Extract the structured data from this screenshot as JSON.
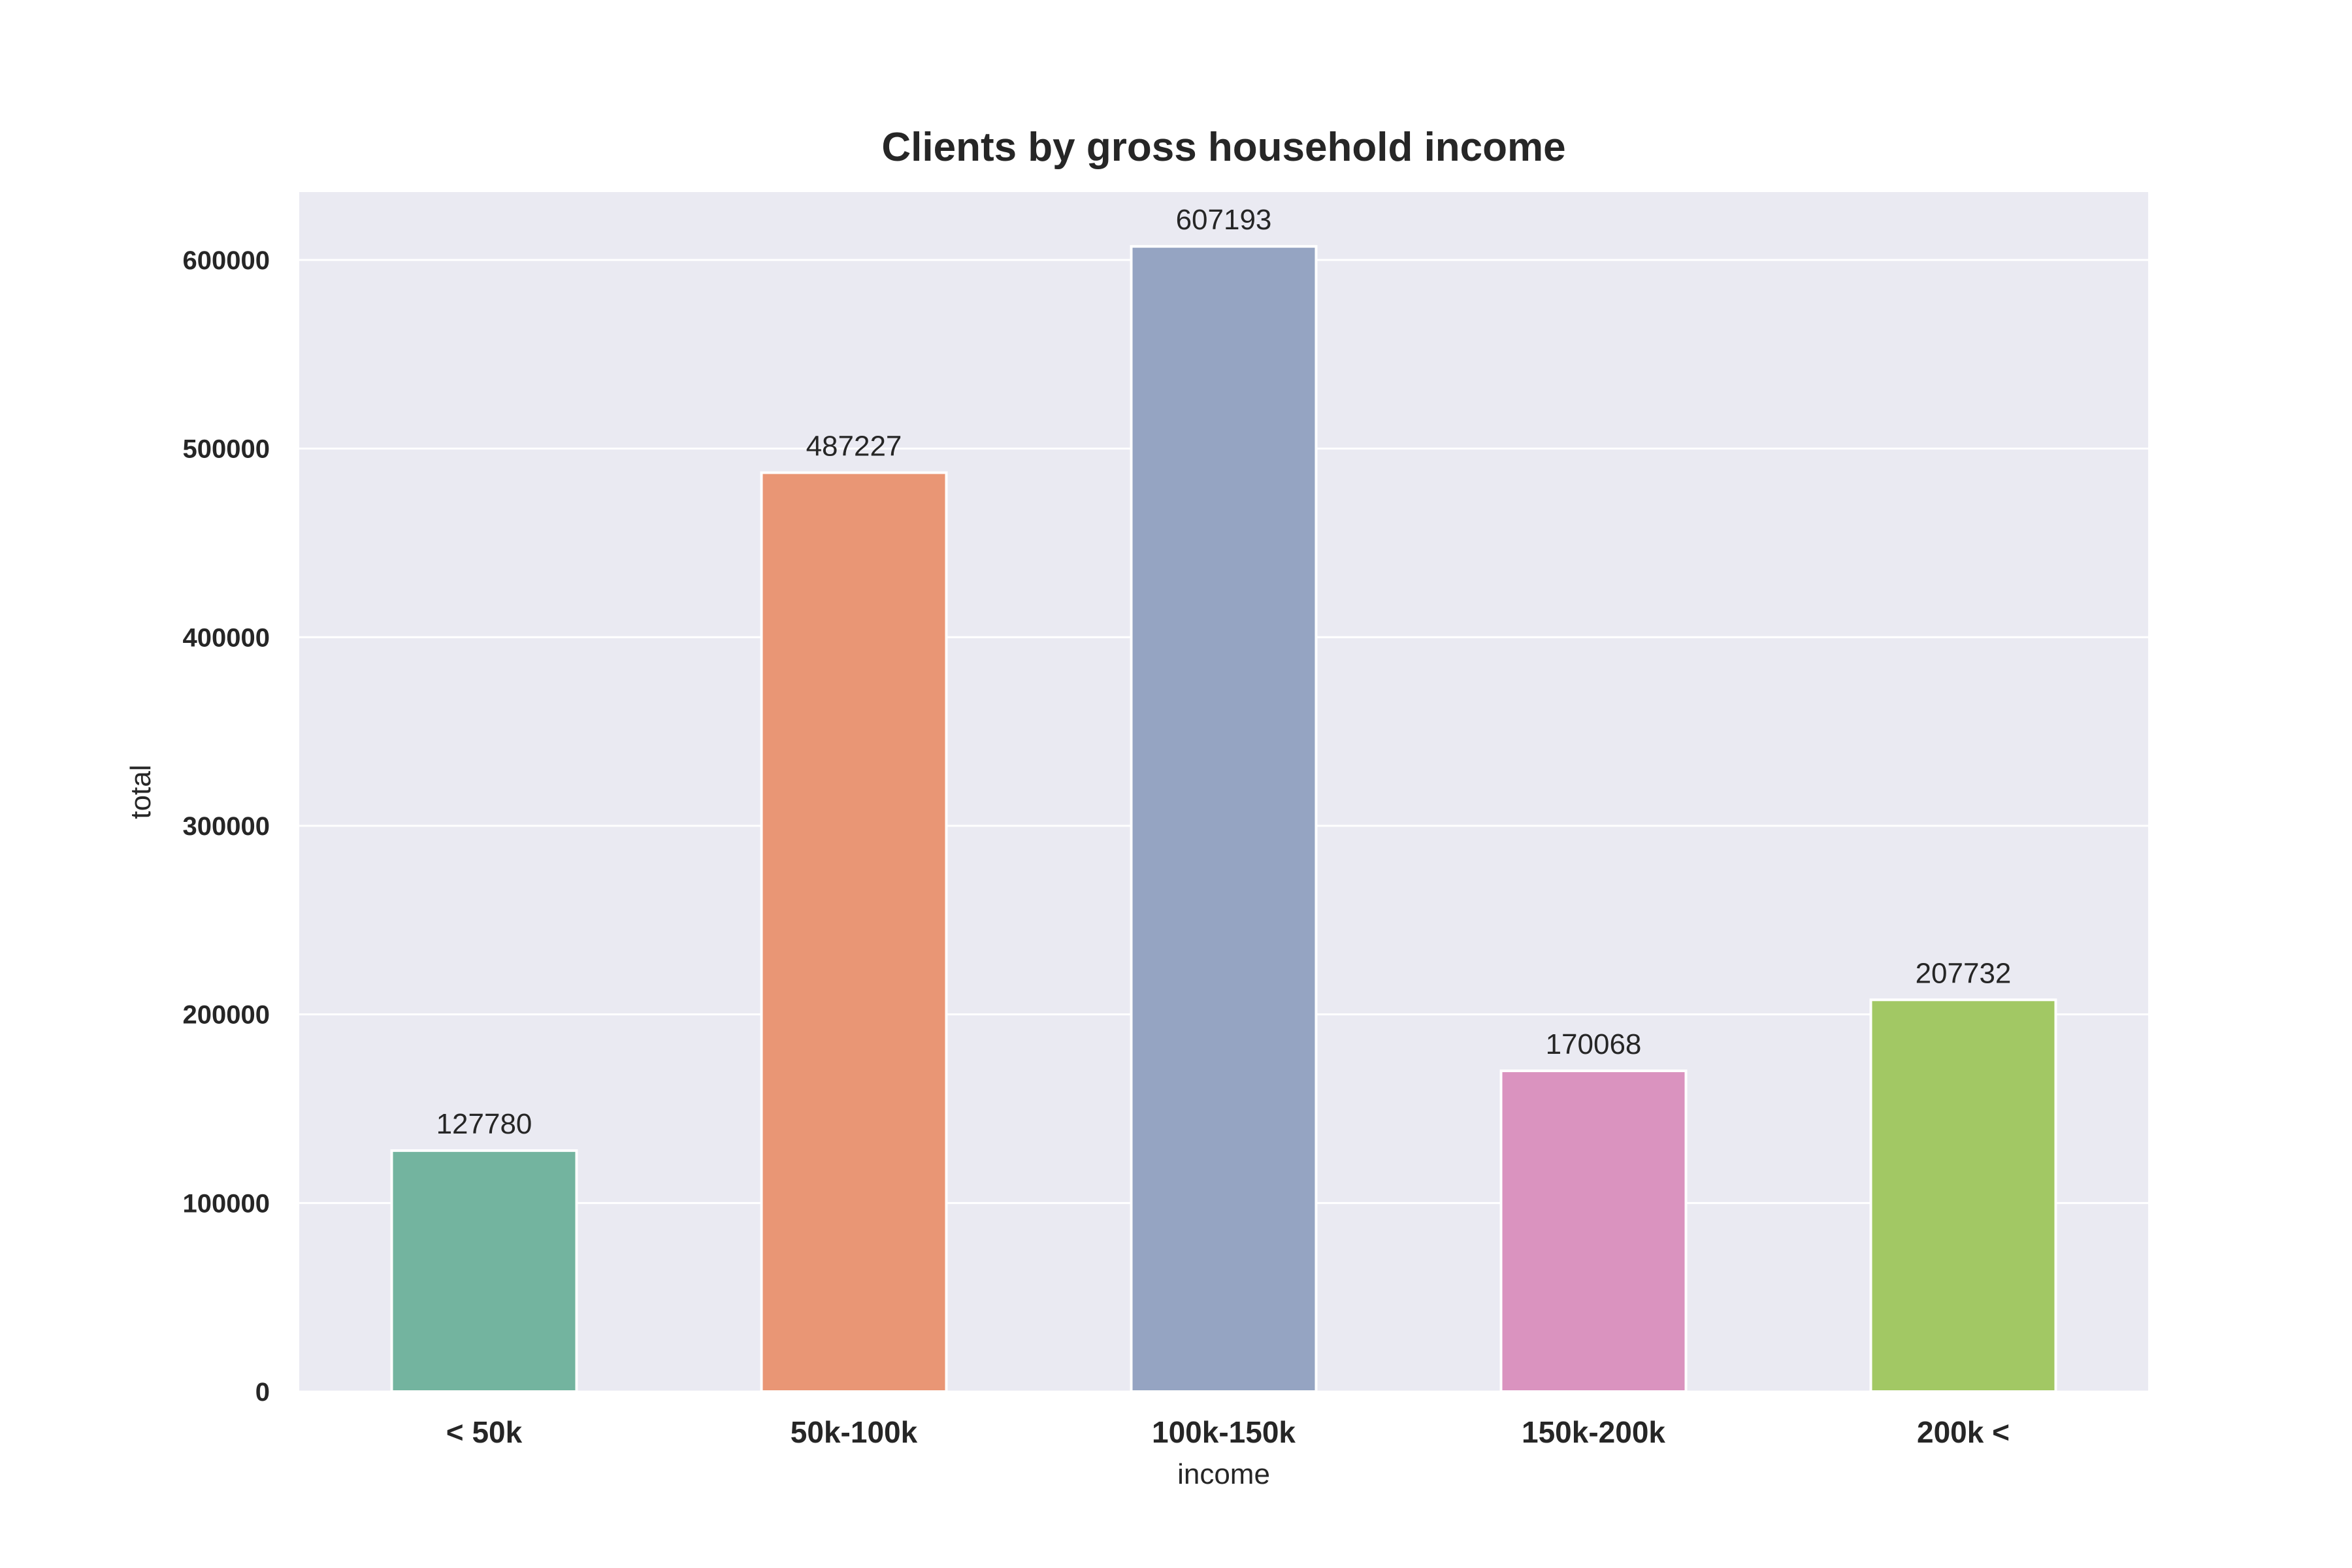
{
  "chart_data": {
    "type": "bar",
    "title": "Clients by gross household income",
    "xlabel": "income",
    "ylabel": "total",
    "categories": [
      "< 50k",
      "50k-100k",
      "100k-150k",
      "150k-200k",
      "200k <"
    ],
    "values": [
      127780,
      487227,
      607193,
      170068,
      207732
    ],
    "value_labels": [
      "127780",
      "487227",
      "607193",
      "170068",
      "207732"
    ],
    "colors": [
      "#73b49f",
      "#e99675",
      "#95a4c2",
      "#da93bf",
      "#a2c864"
    ],
    "ylim": [
      0,
      636000
    ],
    "yticks": [
      0,
      100000,
      200000,
      300000,
      400000,
      500000,
      600000
    ],
    "ytick_labels": [
      "0",
      "100000",
      "200000",
      "300000",
      "400000",
      "500000",
      "600000"
    ],
    "grid": true,
    "background_color": "#eaeaf2",
    "legend": "none"
  }
}
